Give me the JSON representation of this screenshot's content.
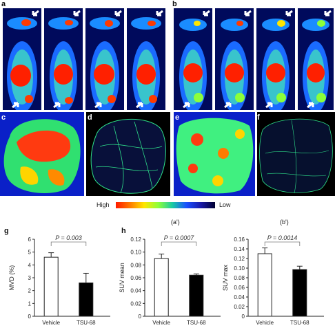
{
  "panel_labels": {
    "a": "a",
    "b": "b",
    "c": "c",
    "d": "d",
    "e": "e",
    "f": "f",
    "g": "g",
    "h": "h"
  },
  "colorscale": {
    "high": "High",
    "low": "Low"
  },
  "subtitles": {
    "a_prime": "(a')",
    "b_prime": "(b')"
  },
  "chart_data": [
    {
      "type": "bar",
      "categories": [
        "Vehicle",
        "TSU-68"
      ],
      "values": [
        4.6,
        2.6
      ],
      "errors": [
        0.35,
        0.75
      ],
      "ylabel": "MVD (%)",
      "ylim": [
        0,
        6
      ],
      "yticks": [
        "0",
        "1",
        "2",
        "3",
        "4",
        "5",
        "6"
      ],
      "pvalue": "P = 0.003",
      "colors": [
        "#ffffff",
        "#000000"
      ]
    },
    {
      "type": "bar",
      "categories": [
        "Vehicle",
        "TSU-68"
      ],
      "values": [
        0.09,
        0.064
      ],
      "errors": [
        0.007,
        0.002
      ],
      "ylabel": "SUV mean",
      "ylim": [
        0,
        0.12
      ],
      "yticks": [
        "0",
        "0.02",
        "0.04",
        "0.06",
        "0.08",
        "0.10",
        "0.12"
      ],
      "pvalue": "P = 0.0007",
      "colors": [
        "#ffffff",
        "#000000"
      ]
    },
    {
      "type": "bar",
      "categories": [
        "Vehicle",
        "TSU-68"
      ],
      "values": [
        0.13,
        0.097
      ],
      "errors": [
        0.012,
        0.007
      ],
      "ylabel": "SUV max",
      "ylim": [
        0,
        0.16
      ],
      "yticks": [
        "0",
        "0.02",
        "0.04",
        "0.06",
        "0.08",
        "0.10",
        "0.12",
        "0.14",
        "0.16"
      ],
      "pvalue": "P = 0.0014",
      "colors": [
        "#ffffff",
        "#000000"
      ]
    }
  ]
}
